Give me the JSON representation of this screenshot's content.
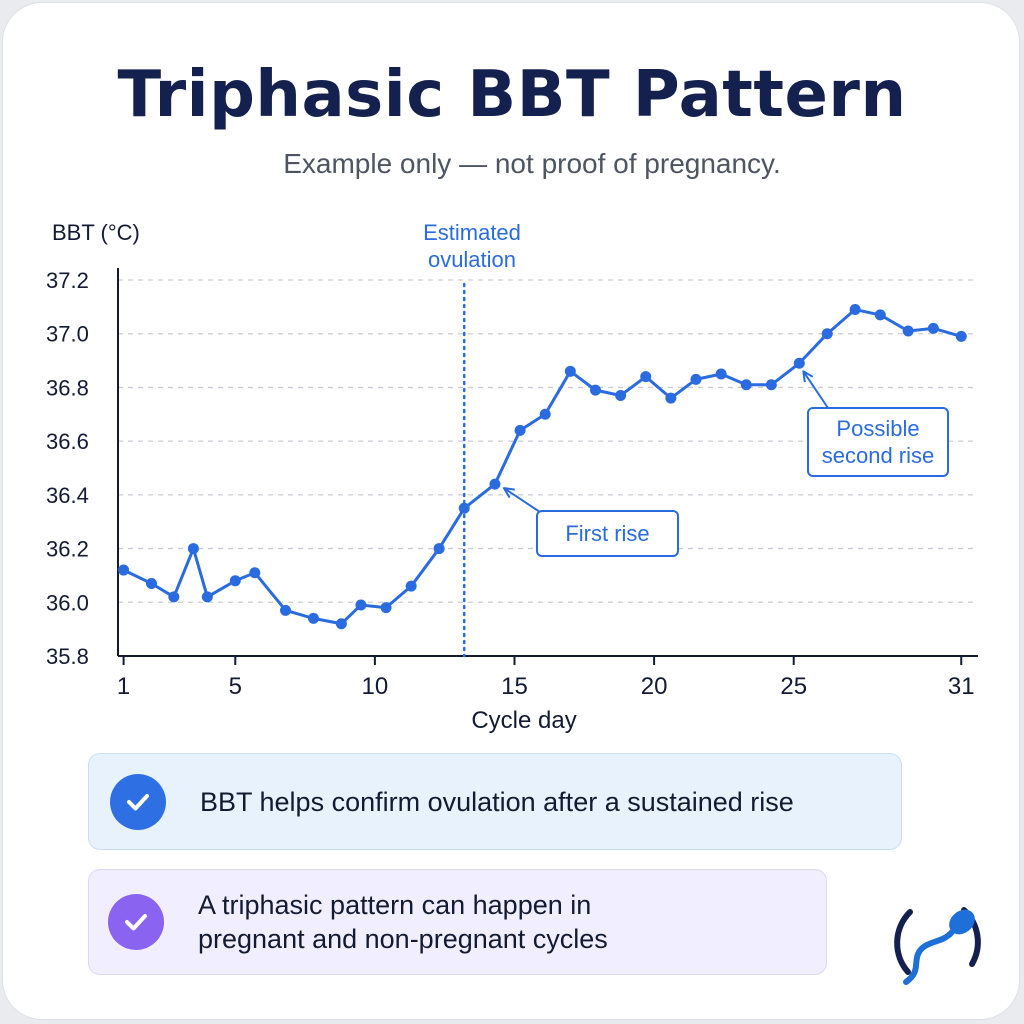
{
  "header": {
    "title": "Triphasic BBT Pattern",
    "subtitle": "Example only — not proof of pregnancy."
  },
  "chart_data": {
    "type": "line",
    "ylabel": "BBT (°C)",
    "xlabel": "Cycle day",
    "x_ticks": [
      1,
      5,
      10,
      15,
      20,
      25,
      31
    ],
    "y_ticks": [
      "35.8",
      "36.0",
      "36.2",
      "36.4",
      "36.6",
      "36.8",
      "37.0",
      "37.2"
    ],
    "xlim": [
      0.8,
      31.6
    ],
    "ylim": [
      35.8,
      37.2
    ],
    "grid": "horizontal dashed",
    "x": [
      1,
      2,
      2.8,
      3.5,
      4,
      5,
      5.7,
      6.8,
      7.8,
      8.8,
      9.5,
      10.4,
      11.3,
      12.3,
      13.2,
      14.3,
      15.2,
      16.1,
      17,
      17.9,
      18.8,
      19.7,
      20.6,
      21.5,
      22.4,
      23.3,
      24.2,
      25.2,
      26.2,
      27.2,
      28.1,
      29.1,
      30,
      31
    ],
    "y": [
      36.12,
      36.07,
      36.02,
      36.2,
      36.02,
      36.08,
      36.11,
      35.97,
      35.94,
      35.92,
      35.99,
      35.98,
      36.06,
      36.2,
      36.35,
      36.44,
      36.64,
      36.7,
      36.86,
      36.79,
      36.77,
      36.84,
      36.76,
      36.83,
      36.85,
      36.81,
      36.81,
      36.89,
      37.0,
      37.09,
      37.07,
      37.01,
      37.02,
      36.99
    ],
    "series_color": "#2a6be0",
    "vertical_marker": {
      "x": 13.2,
      "label_line1": "Estimated",
      "label_line2": "ovulation"
    },
    "annotations": [
      {
        "text": "First rise",
        "x": 14.3,
        "y": 36.44
      },
      {
        "text_line1": "Possible",
        "text_line2": "second rise",
        "x": 25.2,
        "y": 36.89
      }
    ]
  },
  "callouts": [
    {
      "text": "BBT helps confirm ovulation after a sustained rise",
      "color": "#2f6fe4"
    },
    {
      "text_line1": "A triphasic pattern can happen in",
      "text_line2": "pregnant and non-pregnant cycles",
      "color": "#8a63f0"
    }
  ],
  "logo": {
    "icon": "sperm-logo-icon",
    "color": "#1e6fd8"
  }
}
